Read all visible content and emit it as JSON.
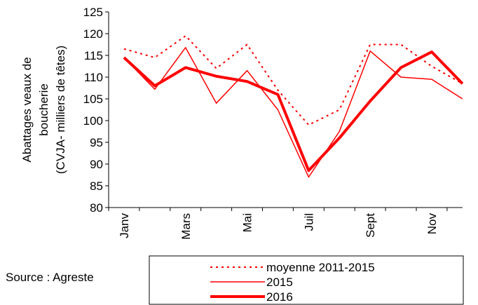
{
  "chart_data": {
    "type": "line",
    "y_label": [
      "Abattages veaux de",
      "boucherie",
      "(CVJA- milliers de têtes)"
    ],
    "source": "Source : Agreste",
    "categories": [
      "Janv",
      null,
      "Mars",
      null,
      "Mai",
      null,
      "Juil",
      null,
      "Sept",
      null,
      "Nov",
      null
    ],
    "series": [
      {
        "name": "moyenne 2011-2015",
        "color": "#ff0000",
        "style": "dotted",
        "values": [
          116.5,
          114.5,
          119.5,
          112,
          117.5,
          107,
          99,
          102.5,
          117.5,
          117.5,
          112.5,
          108.5
        ]
      },
      {
        "name": "2015",
        "color": "#ff0000",
        "style": "thin",
        "values": [
          114.5,
          107.2,
          116.8,
          104,
          111.5,
          102.5,
          87,
          97.5,
          116,
          110,
          109.5,
          105
        ]
      },
      {
        "name": "2016",
        "color": "#ff0000",
        "style": "thick",
        "values": [
          114.5,
          108,
          112.2,
          110.2,
          109,
          106,
          88.5,
          96,
          104.5,
          112.2,
          115.8,
          108.5
        ]
      }
    ],
    "ylim": [
      80,
      125
    ],
    "yticks": [
      80,
      85,
      90,
      95,
      100,
      105,
      110,
      115,
      120,
      125
    ]
  }
}
